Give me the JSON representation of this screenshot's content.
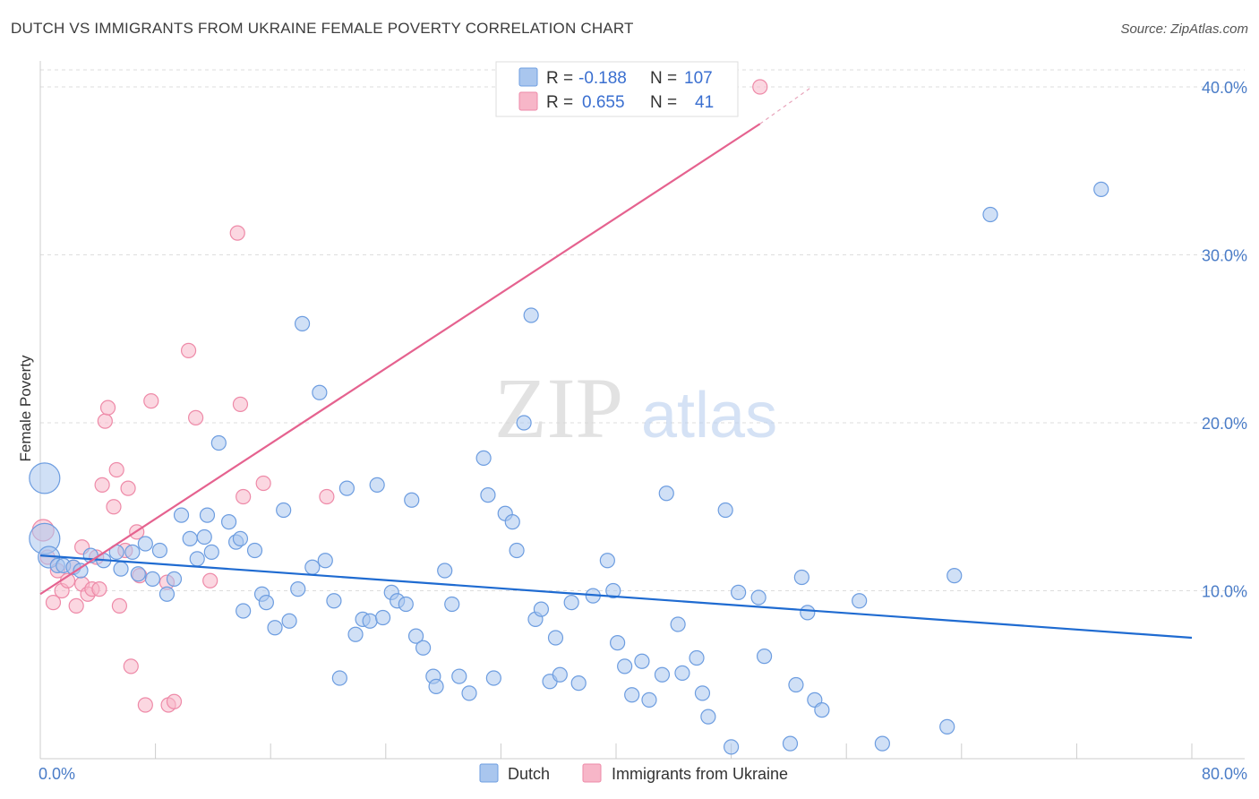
{
  "title": "DUTCH VS IMMIGRANTS FROM UKRAINE FEMALE POVERTY CORRELATION CHART",
  "source": "Source: ZipAtlas.com",
  "watermark_zip": "ZIP",
  "watermark_atlas": "atlas",
  "colors": {
    "dutch_fill": "#a9c6ee",
    "dutch_stroke": "#6d9de0",
    "dutch_line": "#1f6bd1",
    "ukraine_fill": "#f7b6c8",
    "ukraine_stroke": "#ee8aa8",
    "ukraine_line": "#e5628f",
    "tick_text": "#4a7cc7",
    "grid": "#dddddd"
  },
  "legend": {
    "rows": [
      {
        "r_label": "R =",
        "r_value": "-0.188",
        "n_label": "N =",
        "n_value": "107",
        "series": "dutch"
      },
      {
        "r_label": "R =",
        "r_value": "0.655",
        "n_label": "N =",
        "n_value": "41",
        "series": "ukraine"
      }
    ]
  },
  "bottom_legend": {
    "dutch": "Dutch",
    "ukraine": "Immigrants from Ukraine"
  },
  "chart_data": {
    "type": "scatter",
    "title": "DUTCH VS IMMIGRANTS FROM UKRAINE FEMALE POVERTY CORRELATION CHART",
    "xlabel": "",
    "ylabel": "Female Poverty",
    "xlim": [
      0,
      80
    ],
    "ylim": [
      0,
      40
    ],
    "x_tick_labels": [
      "0.0%",
      "80.0%"
    ],
    "y_ticks": [
      10,
      20,
      30,
      40
    ],
    "y_tick_labels": [
      "10.0%",
      "20.0%",
      "30.0%",
      "40.0%"
    ],
    "grid": true,
    "legend_position": "top-center",
    "series": [
      {
        "name": "Dutch",
        "trend": {
          "x0": 0,
          "y0": 12.1,
          "x1": 80,
          "y1": 7.2
        },
        "points": [
          [
            0.3,
            16.7,
            3
          ],
          [
            0.3,
            13.1,
            3
          ],
          [
            0.6,
            12.0,
            2
          ],
          [
            1.2,
            11.5,
            1
          ],
          [
            1.6,
            11.5,
            1
          ],
          [
            2.3,
            11.4,
            1
          ],
          [
            2.8,
            11.2,
            1
          ],
          [
            3.5,
            12.1,
            1
          ],
          [
            4.4,
            11.8,
            1
          ],
          [
            5.3,
            12.3,
            1
          ],
          [
            5.6,
            11.3,
            1
          ],
          [
            6.4,
            12.3,
            1
          ],
          [
            6.8,
            11.0,
            1
          ],
          [
            7.3,
            12.8,
            1
          ],
          [
            7.8,
            10.7,
            1
          ],
          [
            8.3,
            12.4,
            1
          ],
          [
            8.8,
            9.8,
            1
          ],
          [
            9.3,
            10.7,
            1
          ],
          [
            9.8,
            14.5,
            1
          ],
          [
            10.4,
            13.1,
            1
          ],
          [
            10.9,
            11.9,
            1
          ],
          [
            11.4,
            13.2,
            1
          ],
          [
            11.6,
            14.5,
            1
          ],
          [
            11.9,
            12.3,
            1
          ],
          [
            12.4,
            18.8,
            1
          ],
          [
            13.1,
            14.1,
            1
          ],
          [
            13.6,
            12.9,
            1
          ],
          [
            13.9,
            13.1,
            1
          ],
          [
            14.1,
            8.8,
            1
          ],
          [
            14.9,
            12.4,
            1
          ],
          [
            15.4,
            9.8,
            1
          ],
          [
            15.7,
            9.3,
            1
          ],
          [
            16.3,
            7.8,
            1
          ],
          [
            16.9,
            14.8,
            1
          ],
          [
            17.3,
            8.2,
            1
          ],
          [
            17.9,
            10.1,
            1
          ],
          [
            18.2,
            25.9,
            1
          ],
          [
            18.9,
            11.4,
            1
          ],
          [
            19.4,
            21.8,
            1
          ],
          [
            19.8,
            11.8,
            1
          ],
          [
            20.4,
            9.4,
            1
          ],
          [
            20.8,
            4.8,
            1
          ],
          [
            21.3,
            16.1,
            1
          ],
          [
            21.9,
            7.4,
            1
          ],
          [
            22.4,
            8.3,
            1
          ],
          [
            22.9,
            8.2,
            1
          ],
          [
            23.4,
            16.3,
            1
          ],
          [
            23.8,
            8.4,
            1
          ],
          [
            24.4,
            9.9,
            1
          ],
          [
            24.8,
            9.4,
            1
          ],
          [
            25.4,
            9.2,
            1
          ],
          [
            25.8,
            15.4,
            1
          ],
          [
            26.1,
            7.3,
            1
          ],
          [
            26.6,
            6.6,
            1
          ],
          [
            27.3,
            4.9,
            1
          ],
          [
            27.5,
            4.3,
            1
          ],
          [
            28.1,
            11.2,
            1
          ],
          [
            28.6,
            9.2,
            1
          ],
          [
            29.1,
            4.9,
            1
          ],
          [
            29.8,
            3.9,
            1
          ],
          [
            30.8,
            17.9,
            1
          ],
          [
            31.1,
            15.7,
            1
          ],
          [
            31.5,
            4.8,
            1
          ],
          [
            32.3,
            14.6,
            1
          ],
          [
            32.8,
            14.1,
            1
          ],
          [
            33.1,
            12.4,
            1
          ],
          [
            33.6,
            20.0,
            1
          ],
          [
            34.1,
            26.4,
            1
          ],
          [
            34.4,
            8.3,
            1
          ],
          [
            34.8,
            8.9,
            1
          ],
          [
            35.4,
            4.6,
            1
          ],
          [
            35.8,
            7.2,
            1
          ],
          [
            36.1,
            5.0,
            1
          ],
          [
            36.9,
            9.3,
            1
          ],
          [
            37.4,
            4.5,
            1
          ],
          [
            38.4,
            9.7,
            1
          ],
          [
            39.4,
            11.8,
            1
          ],
          [
            39.8,
            10.0,
            1
          ],
          [
            40.1,
            6.9,
            1
          ],
          [
            40.6,
            5.5,
            1
          ],
          [
            41.1,
            3.8,
            1
          ],
          [
            41.8,
            5.8,
            1
          ],
          [
            42.3,
            3.5,
            1
          ],
          [
            43.2,
            5.0,
            1
          ],
          [
            43.5,
            15.8,
            1
          ],
          [
            44.3,
            8.0,
            1
          ],
          [
            44.6,
            5.1,
            1
          ],
          [
            45.6,
            6.0,
            1
          ],
          [
            46.0,
            3.9,
            1
          ],
          [
            46.4,
            2.5,
            1
          ],
          [
            47.6,
            14.8,
            1
          ],
          [
            48.0,
            0.7,
            1
          ],
          [
            48.5,
            9.9,
            1
          ],
          [
            49.9,
            9.6,
            1
          ],
          [
            50.3,
            6.1,
            1
          ],
          [
            52.1,
            0.9,
            1
          ],
          [
            52.5,
            4.4,
            1
          ],
          [
            52.9,
            10.8,
            1
          ],
          [
            53.3,
            8.7,
            1
          ],
          [
            53.8,
            3.5,
            1
          ],
          [
            54.3,
            2.9,
            1
          ],
          [
            56.9,
            9.4,
            1
          ],
          [
            58.5,
            0.9,
            1
          ],
          [
            63.0,
            1.9,
            1
          ],
          [
            63.5,
            10.9,
            1
          ],
          [
            66.0,
            32.4,
            1
          ],
          [
            73.7,
            33.9,
            1
          ]
        ]
      },
      {
        "name": "Immigrants from Ukraine",
        "trend": {
          "x0": 0,
          "y0": 9.8,
          "x1": 50.0,
          "y1": 37.8,
          "dash_x1": 53.6,
          "dash_y1": 40.0
        },
        "points": [
          [
            0.2,
            13.6,
            2
          ],
          [
            0.5,
            12.0,
            1
          ],
          [
            0.9,
            9.3,
            1
          ],
          [
            1.2,
            11.2,
            1
          ],
          [
            1.5,
            10.0,
            1
          ],
          [
            1.9,
            10.6,
            1
          ],
          [
            2.3,
            11.4,
            1
          ],
          [
            2.5,
            9.1,
            1
          ],
          [
            2.9,
            12.6,
            1
          ],
          [
            2.9,
            10.4,
            1
          ],
          [
            3.3,
            9.8,
            1
          ],
          [
            3.6,
            10.1,
            1
          ],
          [
            3.9,
            12.0,
            1
          ],
          [
            4.1,
            10.1,
            1
          ],
          [
            4.3,
            16.3,
            1
          ],
          [
            4.5,
            20.1,
            1
          ],
          [
            4.7,
            20.9,
            1
          ],
          [
            5.1,
            15.0,
            1
          ],
          [
            5.3,
            17.2,
            1
          ],
          [
            5.5,
            9.1,
            1
          ],
          [
            5.9,
            12.4,
            1
          ],
          [
            6.1,
            16.1,
            1
          ],
          [
            6.3,
            5.5,
            1
          ],
          [
            6.7,
            13.5,
            1
          ],
          [
            6.9,
            10.9,
            1
          ],
          [
            7.3,
            3.2,
            1
          ],
          [
            7.7,
            21.3,
            1
          ],
          [
            8.8,
            10.5,
            1
          ],
          [
            8.9,
            3.2,
            1
          ],
          [
            9.3,
            3.4,
            1
          ],
          [
            10.3,
            24.3,
            1
          ],
          [
            10.8,
            20.3,
            1
          ],
          [
            11.8,
            10.6,
            1
          ],
          [
            13.7,
            31.3,
            1
          ],
          [
            13.9,
            21.1,
            1
          ],
          [
            14.1,
            15.6,
            1
          ],
          [
            15.5,
            16.4,
            1
          ],
          [
            19.9,
            15.6,
            1
          ],
          [
            50.0,
            40.0,
            1
          ]
        ]
      }
    ]
  }
}
